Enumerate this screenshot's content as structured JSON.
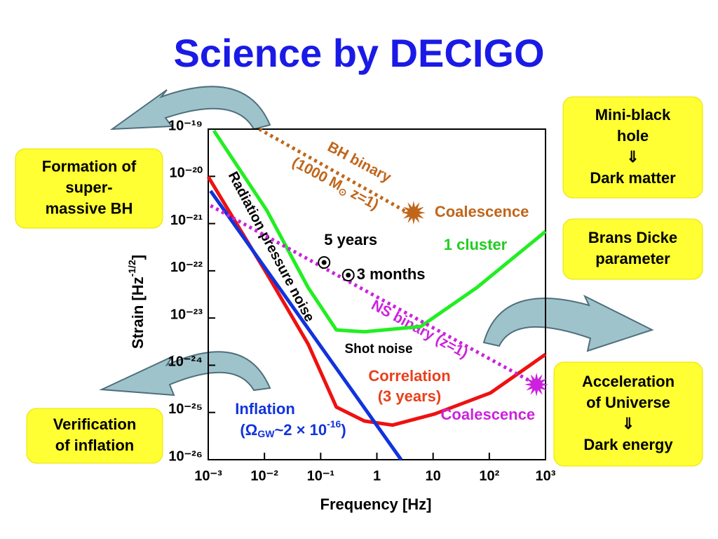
{
  "chart_data": {
    "type": "line",
    "title": "Science by DECIGO",
    "xlabel": "Frequency [Hz]",
    "ylabel": [
      "Strain [Hz",
      "-1/2",
      "]"
    ],
    "log_x": true,
    "log_y": true,
    "xlim": [
      0.001,
      1000
    ],
    "ylim": [
      1e-26,
      1e-19
    ],
    "xticks": [
      {
        "value": 0.001,
        "label": "10⁻³"
      },
      {
        "value": 0.01,
        "label": "10⁻²"
      },
      {
        "value": 0.1,
        "label": "10⁻¹"
      },
      1,
      10,
      {
        "value": 100,
        "label": "10²"
      },
      {
        "value": 1000,
        "label": "10³"
      }
    ],
    "yticks": [
      {
        "value": 1e-26,
        "label": "10⁻²⁶"
      },
      {
        "value": 1e-25,
        "label": "10⁻²⁵"
      },
      {
        "value": 1e-24,
        "label": "10⁻²⁴"
      },
      {
        "value": 1e-23,
        "label": "10⁻²³"
      },
      {
        "value": 1e-22,
        "label": "10⁻²²"
      },
      {
        "value": 1e-21,
        "label": "10⁻²¹"
      },
      {
        "value": 1e-20,
        "label": "10⁻²⁰"
      },
      {
        "value": 1e-19,
        "label": "10⁻¹⁹"
      }
    ],
    "series": [
      {
        "name": "1 cluster",
        "color": "#22ee22",
        "style": "solid",
        "x": [
          0.00126,
          0.011,
          0.06,
          0.19,
          0.6,
          6,
          60,
          1000
        ],
        "values": [
          9.3e-20,
          1.9e-21,
          4.4e-23,
          5.6e-24,
          5.1e-24,
          6.6e-24,
          4.4e-23,
          6.8e-22
        ]
      },
      {
        "name": "Correlation",
        "color": "#ee1111",
        "style": "solid",
        "x": [
          0.001,
          0.011,
          0.06,
          0.19,
          0.6,
          1.9,
          10.7,
          105,
          1000
        ],
        "values": [
          9.8e-21,
          8.7e-23,
          2.8e-24,
          1.3e-25,
          6.6e-26,
          5.4e-26,
          9.3e-26,
          2.6e-25,
          1.7e-24
        ]
      },
      {
        "name": "Inflation",
        "color": "#1133dd",
        "style": "solid",
        "x": [
          0.0011,
          2.7
        ],
        "values": [
          4.9e-21,
          1e-26
        ]
      },
      {
        "name": "BH binary",
        "color": "#c0661a",
        "style": "dotted",
        "x": [
          0.0081,
          3.9
        ],
        "values": [
          1e-19,
          1.6e-21
        ]
      },
      {
        "name": "NS binary (z=1)",
        "color": "#cc22dd",
        "style": "dotted",
        "x": [
          0.0011,
          690
        ],
        "values": [
          2.4e-21,
          3.9e-25
        ]
      }
    ],
    "points": [
      {
        "label": "5 years",
        "marker": "ring",
        "color": "#000000",
        "x": 0.115,
        "y": 1.5e-22
      },
      {
        "label": "3 months",
        "marker": "ring",
        "color": "#000000",
        "x": 0.31,
        "y": 8.1e-23
      },
      {
        "label": "Coalescence",
        "marker": "star",
        "color": "#c0661a",
        "x": 4.5,
        "y": 1.7e-21
      },
      {
        "label": "Coalescence",
        "marker": "star",
        "color": "#cc22dd",
        "x": 690,
        "y": 3.9e-25
      }
    ],
    "annotations": {
      "bh_mass": [
        "(1000 M",
        "⊙",
        " z=1)"
      ],
      "radiation": "Radiation pressure noise",
      "shot": "Shot noise",
      "correlation_time": "(3 years)",
      "inflation_value": [
        "(Ω",
        "GW",
        "~2 × 10",
        "-16",
        ")"
      ]
    }
  },
  "boxes": [
    {
      "lines": [
        "Formation of",
        "super-",
        "massive BH"
      ]
    },
    {
      "lines": [
        "Mini-black",
        "hole",
        "⇓",
        "Dark matter"
      ]
    },
    {
      "lines": [
        "Brans Dicke",
        "parameter"
      ]
    },
    {
      "lines": [
        "Acceleration",
        "of Universe",
        "⇓",
        "Dark energy"
      ]
    },
    {
      "lines": [
        "Verification",
        "of inflation"
      ]
    }
  ]
}
